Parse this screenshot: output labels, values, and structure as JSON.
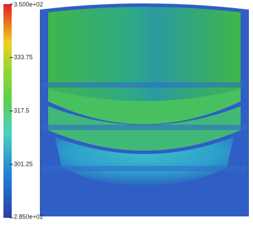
{
  "colorbar": {
    "range": [
      285,
      350
    ],
    "ticks": [
      {
        "value": 350,
        "label": "3.500e+02"
      },
      333.75,
      317.5,
      301.25,
      {
        "value": 285,
        "label": "2.850e+02"
      }
    ]
  }
}
